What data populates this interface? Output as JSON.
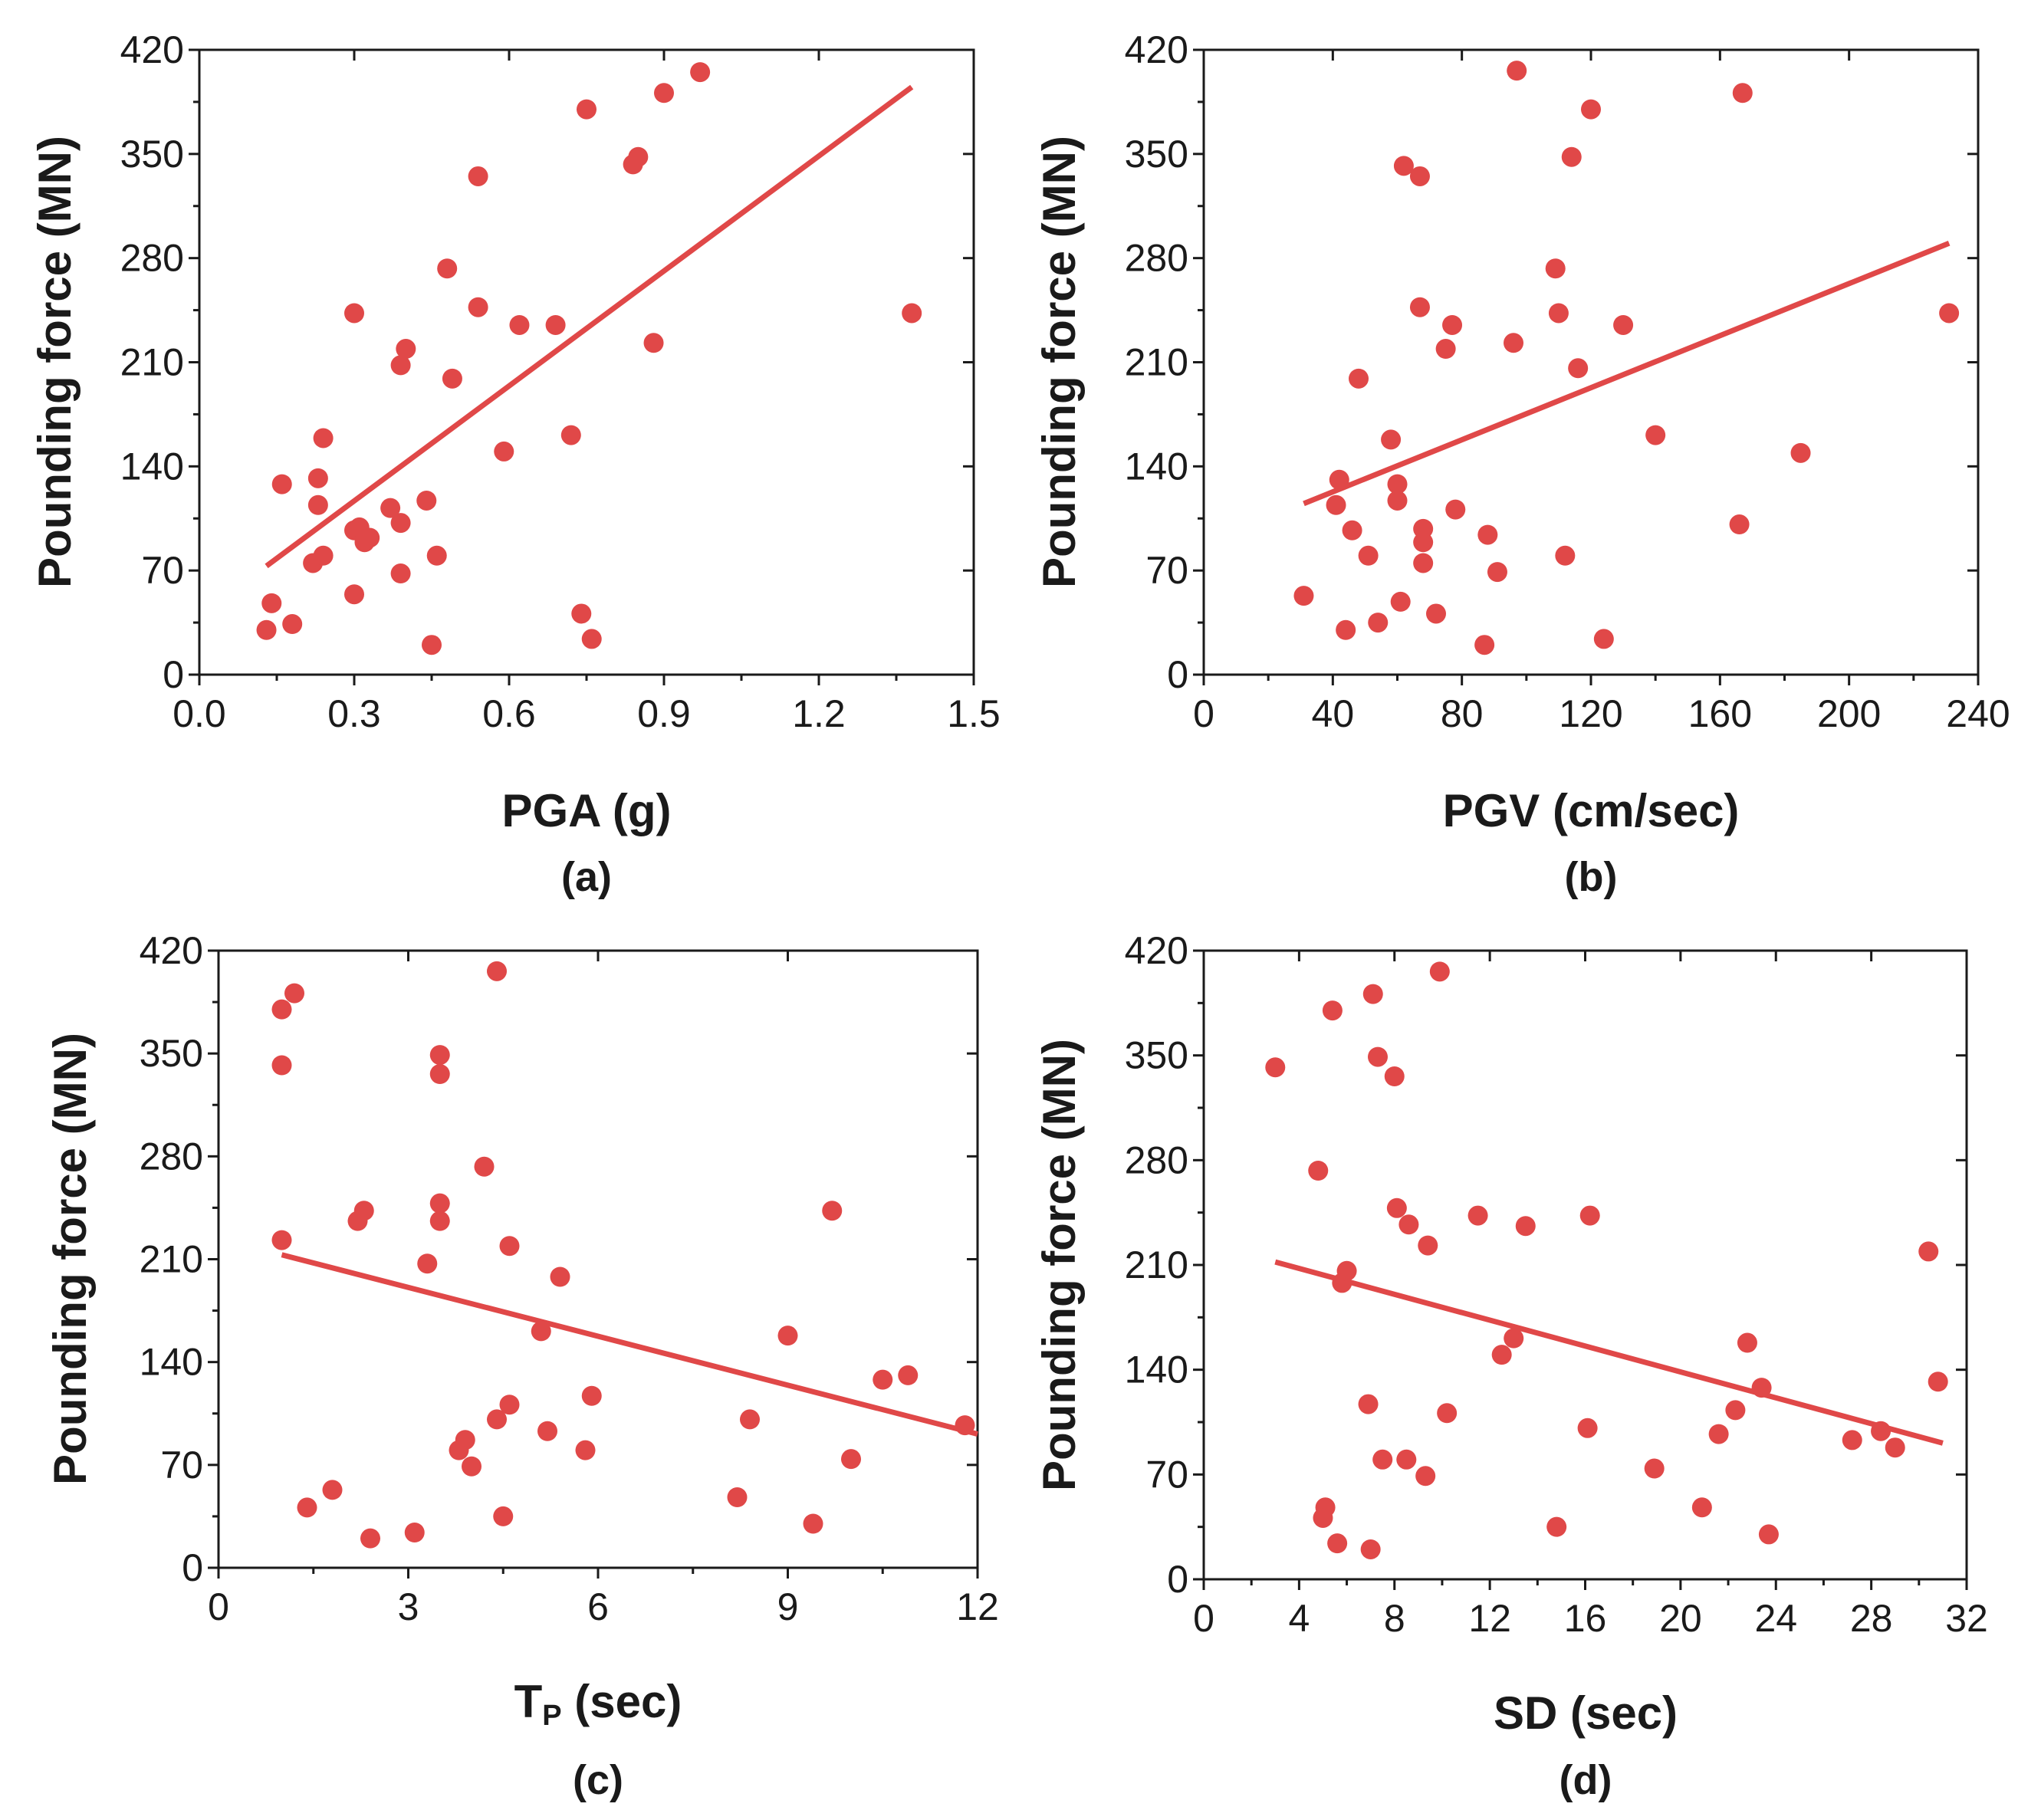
{
  "chart_data": [
    {
      "type": "scatter",
      "panel_label": "(a)",
      "xlabel": "PGA (g)",
      "xlabel_sub": "",
      "xlabel_tail": "",
      "ylabel": "Pounding force (MN)",
      "xlim": [
        0,
        1.5
      ],
      "ylim": [
        0,
        420
      ],
      "xticks": [
        "0.0",
        "0.3",
        "0.6",
        "0.9",
        "1.2",
        "1.5"
      ],
      "xtick_values": [
        0,
        0.3,
        0.6,
        0.9,
        1.2,
        1.5
      ],
      "yticks": [
        "0",
        "70",
        "140",
        "210",
        "280",
        "350",
        "420"
      ],
      "ytick_values": [
        0,
        70,
        140,
        210,
        280,
        350,
        420
      ],
      "color": "#e04848",
      "points": [
        [
          0.13,
          30
        ],
        [
          0.14,
          48
        ],
        [
          0.18,
          34
        ],
        [
          0.16,
          128
        ],
        [
          0.22,
          75
        ],
        [
          0.24,
          80
        ],
        [
          0.23,
          114
        ],
        [
          0.23,
          132
        ],
        [
          0.24,
          159
        ],
        [
          0.3,
          243
        ],
        [
          0.3,
          54
        ],
        [
          0.3,
          97
        ],
        [
          0.31,
          99
        ],
        [
          0.32,
          89
        ],
        [
          0.33,
          92
        ],
        [
          0.37,
          112
        ],
        [
          0.39,
          102
        ],
        [
          0.39,
          68
        ],
        [
          0.39,
          208
        ],
        [
          0.4,
          219
        ],
        [
          0.44,
          117
        ],
        [
          0.45,
          20
        ],
        [
          0.46,
          80
        ],
        [
          0.48,
          273
        ],
        [
          0.49,
          199
        ],
        [
          0.54,
          247
        ],
        [
          0.54,
          335
        ],
        [
          0.59,
          150
        ],
        [
          0.62,
          235
        ],
        [
          0.69,
          235
        ],
        [
          0.72,
          161
        ],
        [
          0.74,
          41
        ],
        [
          0.75,
          380
        ],
        [
          0.76,
          24
        ],
        [
          0.84,
          343
        ],
        [
          0.85,
          348
        ],
        [
          0.88,
          223
        ],
        [
          0.9,
          391
        ],
        [
          0.97,
          405
        ],
        [
          1.38,
          243
        ]
      ],
      "fit_line": [
        [
          0.13,
          73
        ],
        [
          1.38,
          395
        ]
      ]
    },
    {
      "type": "scatter",
      "panel_label": "(b)",
      "xlabel": "PGV (cm/sec)",
      "xlabel_sub": "",
      "xlabel_tail": "",
      "ylabel": "Pounding force (MN)",
      "xlim": [
        0,
        240
      ],
      "ylim": [
        0,
        420
      ],
      "xticks": [
        "0",
        "40",
        "80",
        "120",
        "160",
        "200",
        "240"
      ],
      "xtick_values": [
        0,
        40,
        80,
        120,
        160,
        200,
        240
      ],
      "yticks": [
        "0",
        "70",
        "140",
        "210",
        "280",
        "350",
        "420"
      ],
      "ytick_values": [
        0,
        70,
        140,
        210,
        280,
        350,
        420
      ],
      "color": "#e04848",
      "points": [
        [
          31,
          53
        ],
        [
          41,
          114
        ],
        [
          42,
          131
        ],
        [
          44,
          30
        ],
        [
          46,
          97
        ],
        [
          48,
          199
        ],
        [
          51,
          80
        ],
        [
          54,
          35
        ],
        [
          58,
          158
        ],
        [
          60,
          128
        ],
        [
          60,
          117
        ],
        [
          61,
          49
        ],
        [
          62,
          342
        ],
        [
          67,
          335
        ],
        [
          67,
          247
        ],
        [
          68,
          98
        ],
        [
          68,
          89
        ],
        [
          68,
          75
        ],
        [
          72,
          41
        ],
        [
          75,
          219
        ],
        [
          77,
          235
        ],
        [
          78,
          111
        ],
        [
          87,
          20
        ],
        [
          88,
          94
        ],
        [
          91,
          69
        ],
        [
          96,
          223
        ],
        [
          97,
          406
        ],
        [
          109,
          273
        ],
        [
          110,
          243
        ],
        [
          112,
          80
        ],
        [
          114,
          348
        ],
        [
          116,
          206
        ],
        [
          120,
          380
        ],
        [
          124,
          24
        ],
        [
          130,
          235
        ],
        [
          140,
          161
        ],
        [
          166,
          101
        ],
        [
          167,
          391
        ],
        [
          185,
          149
        ],
        [
          231,
          243
        ]
      ],
      "fit_line": [
        [
          31,
          115
        ],
        [
          231,
          290
        ]
      ]
    },
    {
      "type": "scatter",
      "panel_label": "(c)",
      "xlabel": "T",
      "xlabel_sub": "P",
      "xlabel_tail": " (sec)",
      "ylabel": "Pounding force (MN)",
      "xlim": [
        0,
        12
      ],
      "ylim": [
        0,
        420
      ],
      "xticks": [
        "0",
        "3",
        "6",
        "9",
        "12"
      ],
      "xtick_values": [
        0,
        3,
        6,
        9,
        12
      ],
      "yticks": [
        "0",
        "70",
        "140",
        "210",
        "280",
        "350",
        "420"
      ],
      "ytick_values": [
        0,
        70,
        140,
        210,
        280,
        350,
        420
      ],
      "color": "#e04848",
      "points": [
        [
          1.0,
          223
        ],
        [
          1.0,
          342
        ],
        [
          1.0,
          380
        ],
        [
          1.2,
          391
        ],
        [
          1.4,
          41
        ],
        [
          1.8,
          53
        ],
        [
          2.2,
          236
        ],
        [
          2.3,
          243
        ],
        [
          2.4,
          20
        ],
        [
          3.1,
          24
        ],
        [
          3.3,
          207
        ],
        [
          3.5,
          349
        ],
        [
          3.5,
          336
        ],
        [
          3.5,
          248
        ],
        [
          3.5,
          236
        ],
        [
          3.8,
          80
        ],
        [
          3.9,
          87
        ],
        [
          4.0,
          69
        ],
        [
          4.2,
          273
        ],
        [
          4.4,
          101
        ],
        [
          4.4,
          406
        ],
        [
          4.5,
          35
        ],
        [
          4.6,
          111
        ],
        [
          4.6,
          219
        ],
        [
          5.1,
          161
        ],
        [
          5.2,
          93
        ],
        [
          5.4,
          198
        ],
        [
          5.8,
          80
        ],
        [
          5.9,
          117
        ],
        [
          8.2,
          48
        ],
        [
          8.4,
          101
        ],
        [
          9.0,
          158
        ],
        [
          9.4,
          30
        ],
        [
          9.7,
          243
        ],
        [
          10.0,
          74
        ],
        [
          10.5,
          128
        ],
        [
          10.9,
          131
        ],
        [
          11.8,
          97
        ]
      ],
      "fit_line": [
        [
          1.0,
          213
        ],
        [
          12.0,
          91
        ]
      ]
    },
    {
      "type": "scatter",
      "panel_label": "(d)",
      "xlabel": "SD (sec)",
      "xlabel_sub": "",
      "xlabel_tail": "",
      "ylabel": "Pounding force (MN)",
      "xlim": [
        0,
        32
      ],
      "ylim": [
        0,
        420
      ],
      "xticks": [
        "0",
        "4",
        "8",
        "12",
        "16",
        "20",
        "24",
        "28",
        "32"
      ],
      "xtick_values": [
        0,
        4,
        8,
        12,
        16,
        20,
        24,
        28,
        32
      ],
      "yticks": [
        "0",
        "70",
        "140",
        "210",
        "280",
        "350",
        "420"
      ],
      "ytick_values": [
        0,
        70,
        140,
        210,
        280,
        350,
        420
      ],
      "color": "#e04848",
      "points": [
        [
          3.0,
          342
        ],
        [
          4.8,
          273
        ],
        [
          5.0,
          41
        ],
        [
          5.1,
          48
        ],
        [
          5.4,
          380
        ],
        [
          5.6,
          24
        ],
        [
          5.8,
          198
        ],
        [
          6.0,
          206
        ],
        [
          6.9,
          117
        ],
        [
          7.0,
          20
        ],
        [
          7.1,
          391
        ],
        [
          7.3,
          349
        ],
        [
          7.5,
          80
        ],
        [
          8.0,
          336
        ],
        [
          8.1,
          248
        ],
        [
          8.5,
          80
        ],
        [
          8.6,
          237
        ],
        [
          9.3,
          69
        ],
        [
          9.4,
          223
        ],
        [
          9.9,
          406
        ],
        [
          10.2,
          111
        ],
        [
          11.5,
          243
        ],
        [
          12.5,
          150
        ],
        [
          13.0,
          161
        ],
        [
          13.5,
          236
        ],
        [
          14.8,
          35
        ],
        [
          16.1,
          101
        ],
        [
          16.2,
          243
        ],
        [
          18.9,
          74
        ],
        [
          20.9,
          48
        ],
        [
          21.6,
          97
        ],
        [
          22.3,
          113
        ],
        [
          22.8,
          158
        ],
        [
          23.4,
          128
        ],
        [
          23.7,
          30
        ],
        [
          27.2,
          93
        ],
        [
          28.4,
          99
        ],
        [
          29.0,
          88
        ],
        [
          30.4,
          219
        ],
        [
          30.8,
          132
        ]
      ],
      "fit_line": [
        [
          3.0,
          212
        ],
        [
          31.0,
          91
        ]
      ]
    }
  ]
}
